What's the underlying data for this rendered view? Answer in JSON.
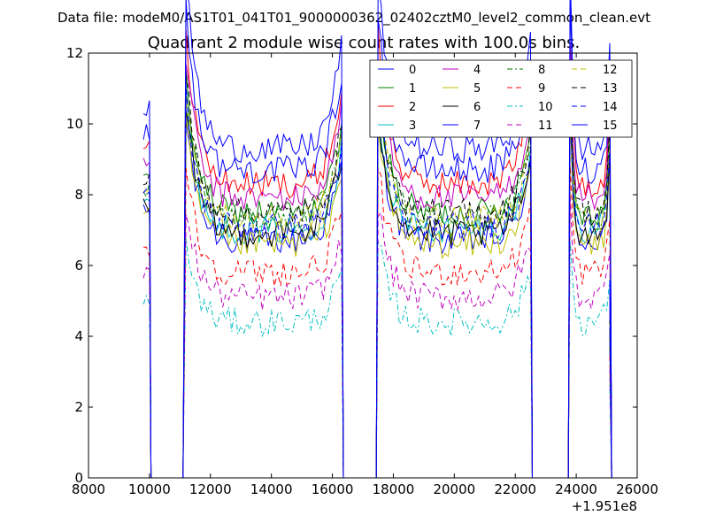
{
  "chart_data": {
    "type": "line",
    "suptitle": "Data file: modeM0/AS1T01_041T01_9000000362_02402cztM0_level2_common_clean.evt",
    "title": "Quadrant 2 module wise count rates with 100.0s bins.",
    "xlabel": "",
    "ylabel": "",
    "x_offset_label": "+1.951e8",
    "xlim": [
      8000,
      26000
    ],
    "ylim": [
      0,
      12
    ],
    "x_ticks": [
      "8000",
      "10000",
      "12000",
      "14000",
      "16000",
      "18000",
      "20000",
      "22000",
      "24000",
      "26000"
    ],
    "y_ticks": [
      "0",
      "2",
      "4",
      "6",
      "8",
      "10",
      "12"
    ],
    "grid": false,
    "legend_position": "top-right",
    "segments": [
      {
        "start": 9800,
        "end": 10000
      },
      {
        "start": 11200,
        "end": 16300
      },
      {
        "start": 17500,
        "end": 22500
      },
      {
        "start": 23800,
        "end": 25100
      }
    ],
    "gaps": [
      [
        10200,
        11100
      ],
      [
        16400,
        17400
      ],
      [
        22600,
        23700
      ]
    ],
    "series": [
      {
        "name": "0",
        "color": "#0000ff",
        "style": "solid",
        "level": 6.7
      },
      {
        "name": "1",
        "color": "#008000",
        "style": "solid",
        "level": 7.5
      },
      {
        "name": "2",
        "color": "#ff0000",
        "style": "solid",
        "level": 8.3
      },
      {
        "name": "3",
        "color": "#00bfbf",
        "style": "solid",
        "level": 7.0
      },
      {
        "name": "4",
        "color": "#bf00bf",
        "style": "solid",
        "level": 7.9
      },
      {
        "name": "5",
        "color": "#bfbf00",
        "style": "solid",
        "level": 6.6
      },
      {
        "name": "6",
        "color": "#000000",
        "style": "solid",
        "level": 6.9
      },
      {
        "name": "7",
        "color": "#0000ff",
        "style": "solid",
        "level": 8.7
      },
      {
        "name": "8",
        "color": "#008000",
        "style": "dashdot",
        "level": 7.3
      },
      {
        "name": "9",
        "color": "#ff0000",
        "style": "dashed",
        "level": 5.8
      },
      {
        "name": "10",
        "color": "#00bfbf",
        "style": "dashdot",
        "level": 4.4
      },
      {
        "name": "11",
        "color": "#bf00bf",
        "style": "dashed",
        "level": 5.1
      },
      {
        "name": "12",
        "color": "#bfbf00",
        "style": "dashed",
        "level": 7.3
      },
      {
        "name": "13",
        "color": "#000000",
        "style": "dashed",
        "level": 7.5
      },
      {
        "name": "14",
        "color": "#0000ff",
        "style": "dashed",
        "level": 7.1
      },
      {
        "name": "15",
        "color": "#0000ff",
        "style": "solid",
        "level": 9.3
      }
    ]
  }
}
